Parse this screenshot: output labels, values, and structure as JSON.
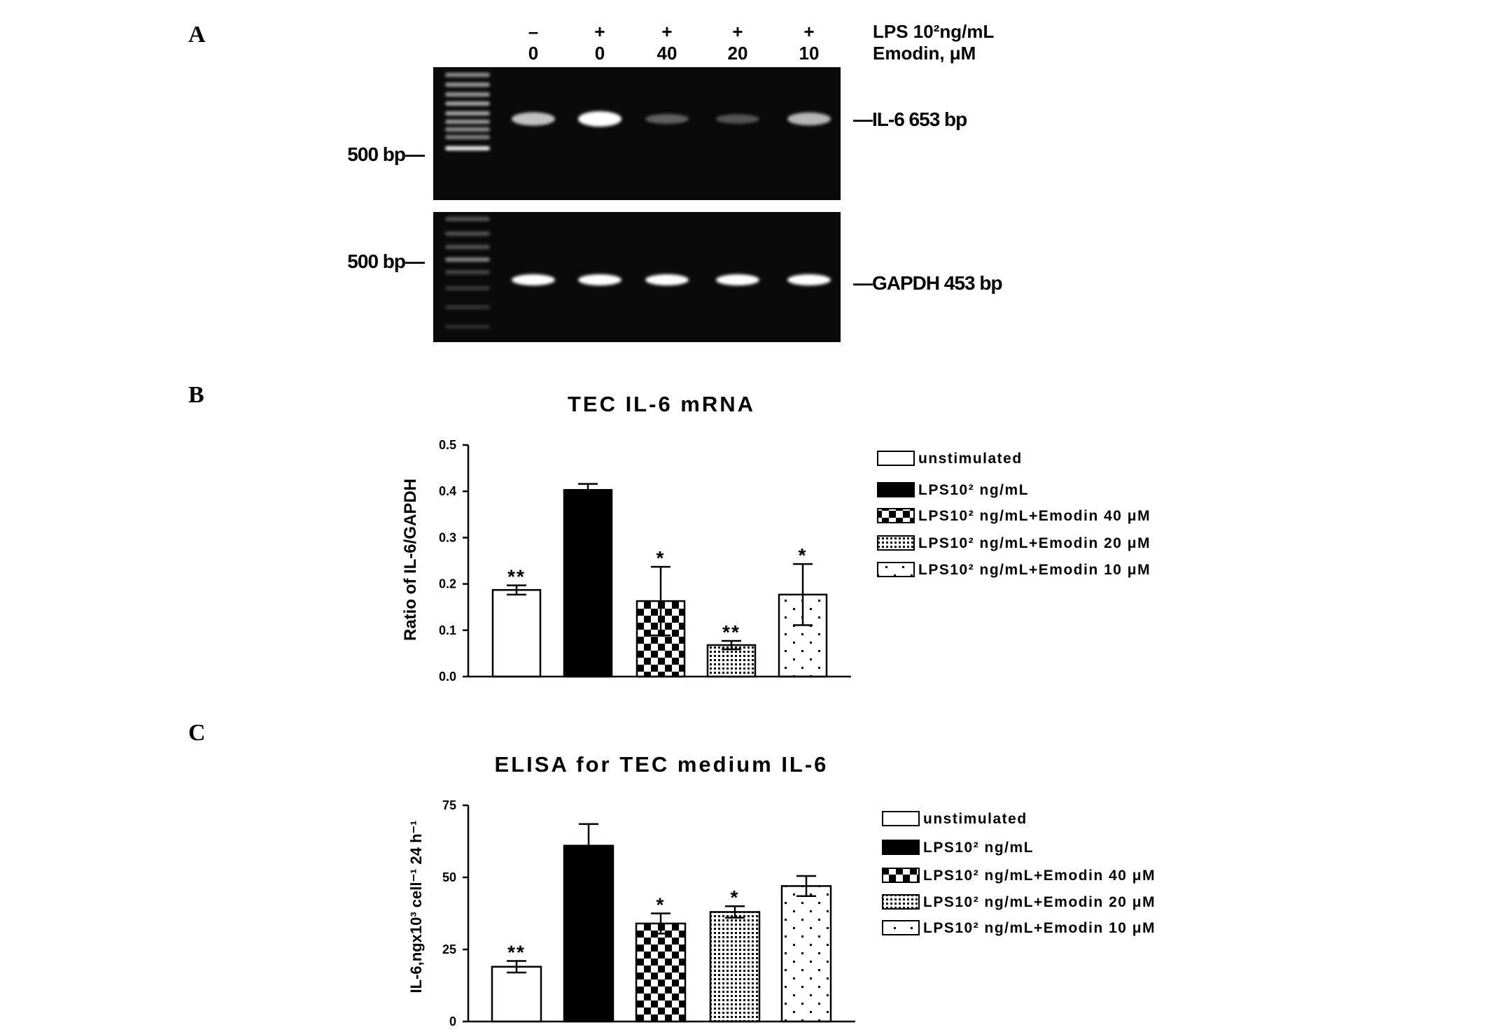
{
  "panels": {
    "a": "A",
    "b": "B",
    "c": "C"
  },
  "gel": {
    "lps_label": "LPS 10²ng/mL",
    "emodin_label": "Emodin, μM",
    "lanes": [
      {
        "lps": "–",
        "emodin": "0"
      },
      {
        "lps": "+",
        "emodin": "0"
      },
      {
        "lps": "+",
        "emodin": "40"
      },
      {
        "lps": "+",
        "emodin": "20"
      },
      {
        "lps": "+",
        "emodin": "10"
      }
    ],
    "top": {
      "marker_label": "500 bp—",
      "band_label": "—IL-6 653 bp",
      "band_intensity": [
        0.75,
        1.0,
        0.35,
        0.3,
        0.7
      ]
    },
    "bottom": {
      "marker_label": "500 bp—",
      "band_label": "—GAPDH 453 bp",
      "band_intensity": [
        1.0,
        1.0,
        1.0,
        1.0,
        1.0
      ]
    },
    "colors": {
      "gel_background": "#0a0a0a",
      "band": "#ffffff"
    }
  },
  "chart_data": [
    {
      "type": "bar",
      "title": "TEC IL-6 mRNA",
      "ylabel": "Ratio of IL-6/GAPDH",
      "ylim": [
        0,
        0.5
      ],
      "yticks": [
        "0.0",
        "0.1",
        "0.2",
        "0.3",
        "0.4",
        "0.5"
      ],
      "categories": [
        "unstimulated",
        "LPS10² ng/mL",
        "LPS10² ng/mL+Emodin 40 μM",
        "LPS10² ng/mL+Emodin 20 μM",
        "LPS10² ng/mL+Emodin 10 μM"
      ],
      "values": [
        0.187,
        0.403,
        0.163,
        0.068,
        0.177
      ],
      "errors": [
        0.01,
        0.013,
        0.074,
        0.009,
        0.066
      ],
      "significance": [
        "**",
        "",
        "*",
        "**",
        "*"
      ],
      "fills": [
        "white",
        "black",
        "checker",
        "dense-dots",
        "sparse-dots"
      ],
      "legend_position": "right",
      "grid": false
    },
    {
      "type": "bar",
      "title": "ELISA for TEC medium IL-6",
      "ylabel": "IL-6,ngx10³ cell⁻¹ 24 h⁻¹",
      "ylim": [
        0,
        75
      ],
      "yticks": [
        "0",
        "25",
        "50",
        "75"
      ],
      "categories": [
        "unstimulated",
        "LPS10² ng/mL",
        "LPS10² ng/mL+Emodin 40 μM",
        "LPS10² ng/mL+Emodin 20 μM",
        "LPS10² ng/mL+Emodin 10 μM"
      ],
      "values": [
        19,
        61,
        34,
        38,
        47
      ],
      "errors": [
        2,
        7.5,
        3.5,
        2,
        3.5
      ],
      "significance": [
        "**",
        "",
        "*",
        "*",
        ""
      ],
      "fills": [
        "white",
        "black",
        "checker",
        "dense-dots",
        "sparse-dots"
      ],
      "legend_position": "right",
      "grid": false
    }
  ]
}
